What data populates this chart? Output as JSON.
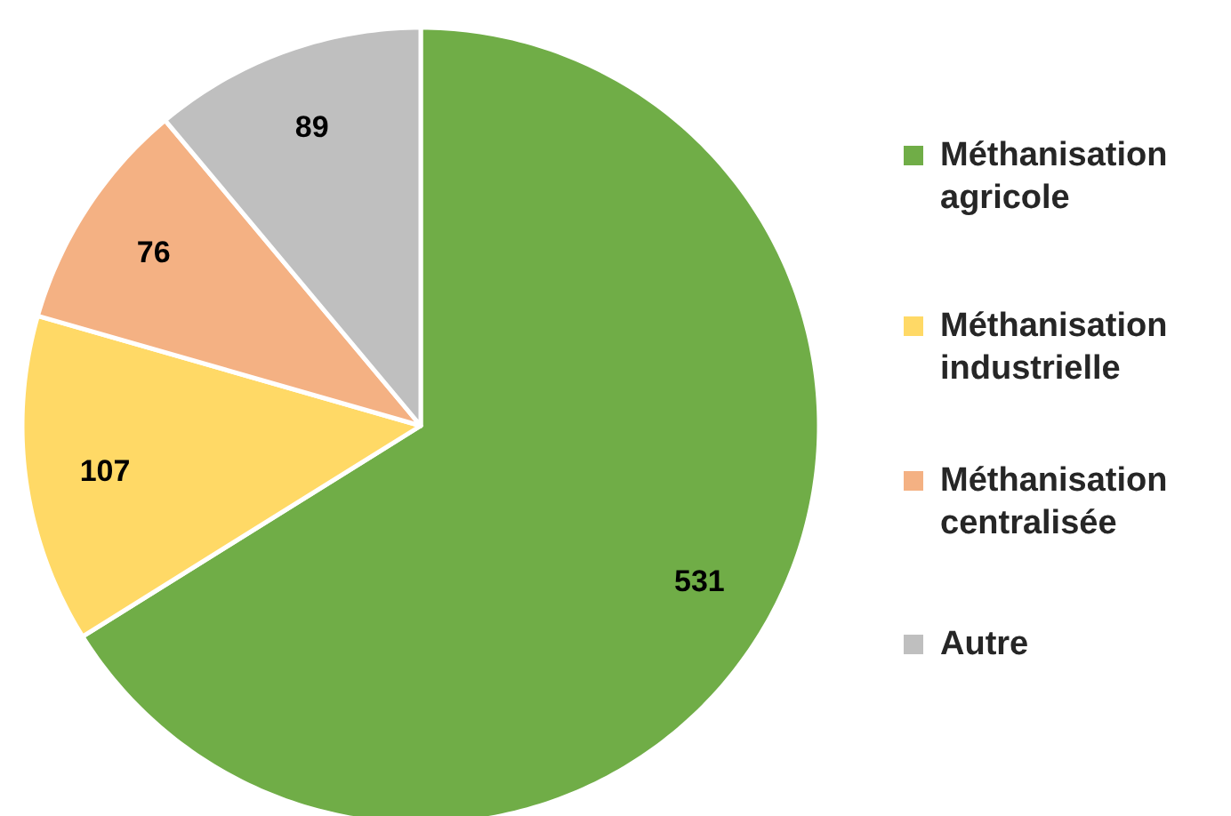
{
  "chart_data": {
    "type": "pie",
    "categories": [
      "Méthanisation agricole",
      "Méthanisation industrielle",
      "Méthanisation centralisée",
      "Autre"
    ],
    "values": [
      531,
      107,
      76,
      89
    ],
    "colors": [
      "#70ad47",
      "#ffd966",
      "#f4b183",
      "#bfbfbf"
    ],
    "data_labels": true,
    "legend": "right"
  }
}
